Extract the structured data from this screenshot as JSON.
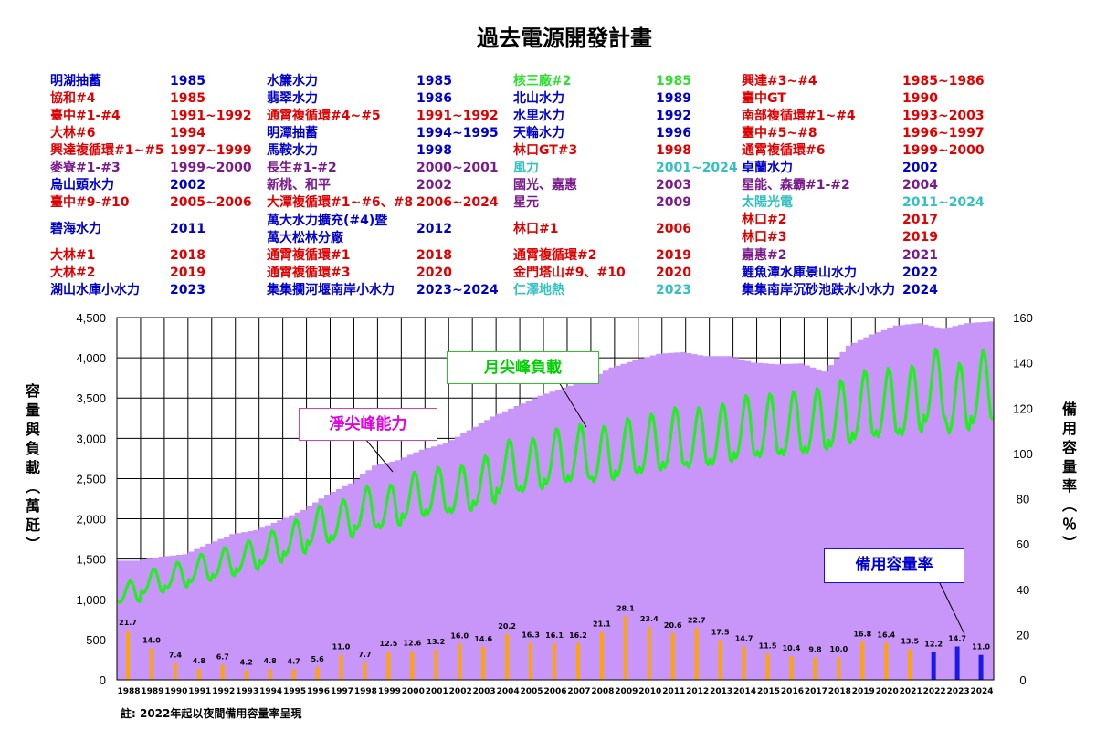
{
  "title": "過去電源開發計畫",
  "plants": [
    [
      {
        "name": "明湖抽蓄",
        "year": "1985",
        "color": "#0000cc"
      },
      {
        "name": "協和#4",
        "year": "1985",
        "color": "#e00000"
      },
      {
        "name": "臺中#1-#4",
        "year": "1991~1992",
        "color": "#e00000"
      },
      {
        "name": "大林#6",
        "year": "1994",
        "color": "#e00000"
      },
      {
        "name": "興達複循環#1~#5",
        "year": "1997~1999",
        "color": "#e00000"
      },
      {
        "name": "麥寮#1-#3",
        "year": "1999~2000",
        "color": "#7a1b8c"
      },
      {
        "name": "烏山頭水力",
        "year": "2002",
        "color": "#0000cc"
      },
      {
        "name": "臺中#9-#10",
        "year": "2005~2006",
        "color": "#e00000"
      },
      {
        "name": "碧海水力",
        "year": "2011",
        "color": "#0000cc"
      },
      {
        "name": "大林#1",
        "year": "2018",
        "color": "#e00000"
      },
      {
        "name": "大林#2",
        "year": "2019",
        "color": "#e00000"
      },
      {
        "name": "湖山水庫小水力",
        "year": "2023",
        "color": "#0000cc"
      }
    ],
    [
      {
        "name": "水簾水力",
        "year": "1985",
        "color": "#0000cc"
      },
      {
        "name": "翡翠水力",
        "year": "1986",
        "color": "#0000cc"
      },
      {
        "name": "通霄複循環#4~#5",
        "year": "1991~1992",
        "color": "#e00000"
      },
      {
        "name": "明潭抽蓄",
        "year": "1994~1995",
        "color": "#0000cc"
      },
      {
        "name": "馬鞍水力",
        "year": "1998",
        "color": "#0000cc"
      },
      {
        "name": "長生#1-#2",
        "year": "2000~2001",
        "color": "#7a1b8c"
      },
      {
        "name": "新桃、和平",
        "year": "2002",
        "color": "#7a1b8c"
      },
      {
        "name": "大潭複循環#1~#6、#8",
        "year": "2006~2024",
        "color": "#e00000"
      },
      {
        "name": "萬大水力擴充(#4)暨\n萬大松林分廠",
        "year": "2012",
        "color": "#0000cc"
      },
      {
        "name": "通霄複循環#1",
        "year": "2018",
        "color": "#e00000"
      },
      {
        "name": "通霄複循環#3",
        "year": "2020",
        "color": "#e00000"
      },
      {
        "name": "集集攔河堰南岸小水力",
        "year": "2023~2024",
        "color": "#0000cc"
      }
    ],
    [
      {
        "name": "核三廠#2",
        "year": "1985",
        "color": "#33dd33"
      },
      {
        "name": "北山水力",
        "year": "1989",
        "color": "#0000cc"
      },
      {
        "name": "水里水力",
        "year": "1992",
        "color": "#0000cc"
      },
      {
        "name": "天輪水力",
        "year": "1996",
        "color": "#0000cc"
      },
      {
        "name": "林口GT#3",
        "year": "1998",
        "color": "#e00000"
      },
      {
        "name": "風力",
        "year": "2001~2024",
        "color": "#33c0c0"
      },
      {
        "name": "國光、嘉惠",
        "year": "2003",
        "color": "#7a1b8c"
      },
      {
        "name": "星元",
        "year": "2009",
        "color": "#7a1b8c"
      },
      {
        "name": "林口#1",
        "year": "2006",
        "color": "#e00000"
      },
      {
        "name": "通霄複循環#2",
        "year": "2019",
        "color": "#e00000"
      },
      {
        "name": "金門塔山#9、#10",
        "year": "2020",
        "color": "#e00000"
      },
      {
        "name": "仁澤地熱",
        "year": "2023",
        "color": "#33c0c0"
      }
    ],
    [
      {
        "name": "興達#3~#4",
        "year": "1985~1986",
        "color": "#e00000"
      },
      {
        "name": "臺中GT",
        "year": "1990",
        "color": "#e00000"
      },
      {
        "name": "南部複循環#1~#4",
        "year": "1993~2003",
        "color": "#e00000"
      },
      {
        "name": "臺中#5~#8",
        "year": "1996~1997",
        "color": "#e00000"
      },
      {
        "name": "通霄複循環#6",
        "year": "1999~2000",
        "color": "#e00000"
      },
      {
        "name": "卓蘭水力",
        "year": "2002",
        "color": "#0000cc"
      },
      {
        "name": "星能、森霸#1-#2",
        "year": "2004",
        "color": "#7a1b8c"
      },
      {
        "name": "太陽光電",
        "year": "2011~2024",
        "color": "#33c0c0"
      },
      {
        "name": "林口#2",
        "year": "2017",
        "color": "#e00000"
      },
      {
        "name": "林口#3",
        "year": "2019",
        "color": "#e00000"
      },
      {
        "name": "嘉惠#2",
        "year": "2021",
        "color": "#7a1b8c"
      },
      {
        "name": "鯉魚潭水庫景山水力",
        "year": "2022",
        "color": "#0000cc"
      },
      {
        "name": "集集南岸沉砂池跌水小水力",
        "year": "2024",
        "color": "#0000cc"
      }
    ]
  ],
  "ylabel": "容量與負載（萬瓩）",
  "y2label": "備用容量率（％）",
  "callouts": {
    "net_capacity": "淨尖峰能力",
    "peak_load": "月尖峰負載",
    "reserve": "備用容量率"
  },
  "note": "註:  2022年起以夜間備用容量率呈現",
  "chart_data": {
    "type": "bar",
    "title": "過去電源開發計畫",
    "xlabel": "",
    "ylabel": "容量與負載（萬瓩）",
    "y2label": "備用容量率（％）",
    "ylim": [
      0,
      4500
    ],
    "y2lim": [
      0,
      160
    ],
    "yticks": [
      0,
      500,
      1000,
      1500,
      2000,
      2500,
      3000,
      3500,
      4000,
      4500
    ],
    "y2ticks": [
      0,
      20,
      40,
      60,
      80,
      100,
      120,
      140,
      160
    ],
    "grid": true,
    "categories": [
      "1988",
      "1989",
      "1990",
      "1991",
      "1992",
      "1993",
      "1994",
      "1995",
      "1996",
      "1997",
      "1998",
      "1999",
      "2000",
      "2001",
      "2002",
      "2003",
      "2004",
      "2005",
      "2006",
      "2007",
      "2008",
      "2009",
      "2010",
      "2011",
      "2012",
      "2013",
      "2014",
      "2015",
      "2016",
      "2017",
      "2018",
      "2019",
      "2020",
      "2021",
      "2022",
      "2023",
      "2024"
    ],
    "series": [
      {
        "name": "淨尖峰能力",
        "type": "area",
        "color": "#c896f8",
        "values": [
          1480,
          1530,
          1560,
          1690,
          1810,
          1860,
          1980,
          2110,
          2300,
          2440,
          2660,
          2730,
          2860,
          2940,
          3100,
          3270,
          3400,
          3530,
          3630,
          3720,
          3880,
          3970,
          4050,
          4070,
          4020,
          4020,
          3940,
          3920,
          3930,
          3830,
          4150,
          4290,
          4400,
          4430,
          4360,
          4430,
          4450
        ]
      },
      {
        "name": "月尖峰負載",
        "type": "line",
        "color": "#22ee22",
        "values": [
          1230,
          1380,
          1460,
          1560,
          1640,
          1730,
          1850,
          1990,
          2160,
          2240,
          2400,
          2420,
          2580,
          2640,
          2660,
          2780,
          2980,
          3000,
          3120,
          3170,
          3150,
          3250,
          3300,
          3380,
          3380,
          3430,
          3530,
          3550,
          3580,
          3620,
          3720,
          3840,
          3870,
          3900,
          4110,
          3930,
          4090
        ]
      },
      {
        "name": "備用容量率",
        "type": "bar",
        "axis": "right",
        "values": [
          21.7,
          14.0,
          7.4,
          4.8,
          6.7,
          4.2,
          4.8,
          4.7,
          5.6,
          11.0,
          7.7,
          12.5,
          12.6,
          13.2,
          16.0,
          14.6,
          20.2,
          16.3,
          16.1,
          16.2,
          21.1,
          28.1,
          23.4,
          20.6,
          22.7,
          17.5,
          14.7,
          11.5,
          10.4,
          9.8,
          10.0,
          16.8,
          16.4,
          13.5,
          12.2,
          14.7,
          11.0
        ],
        "colors_by_year": {
          "1988-2021": "#ffa500",
          "2022-2024": "#1a1ae6"
        }
      }
    ]
  }
}
